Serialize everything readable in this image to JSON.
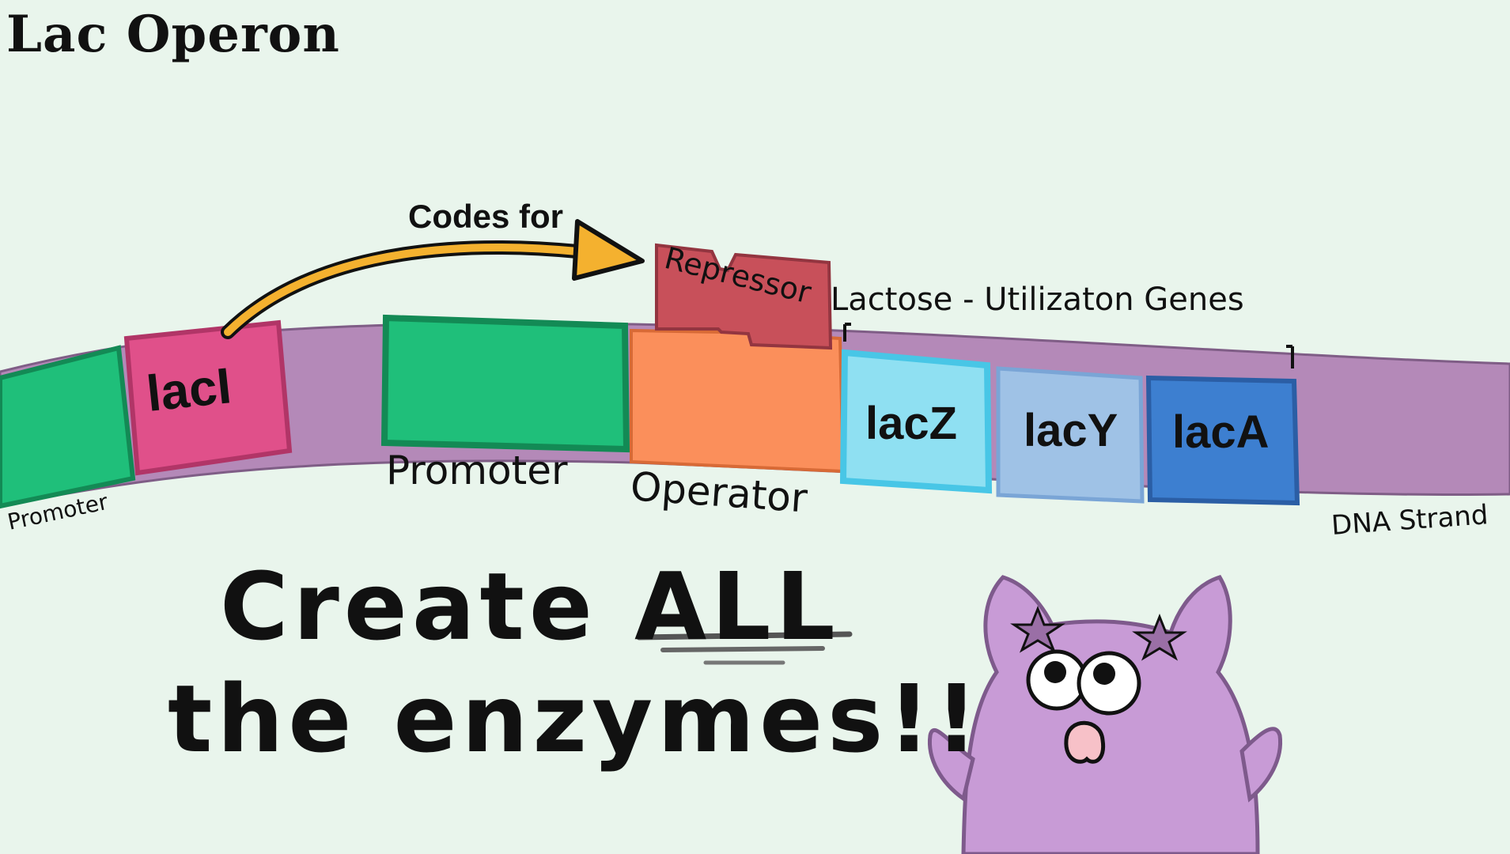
{
  "title": "Lac Operon",
  "arrow_label": "Codes for",
  "repressor_label": "Repressor",
  "gene_group_label": "Lactose - Utilizaton Genes",
  "segments": {
    "promoter_left": "Promoter",
    "lacI": "lacI",
    "promoter_main": "Promoter",
    "operator": "Operator",
    "lacZ": "lacZ",
    "lacY": "lacY",
    "lacA": "lacA",
    "dna_strand": "DNA Strand"
  },
  "headline": {
    "line1_prefix": "Create ",
    "line1_emphasis": "ALL",
    "line2": "the enzymes!!"
  },
  "colors": {
    "background": "#e9f5ec",
    "promoter": "#1fbf7a",
    "lacI": "#e0508a",
    "dna": "#b489b8",
    "operator": "#fb8f5b",
    "repressor": "#c8505a",
    "lacZ": "#8fe0f2",
    "lacY": "#9fc2e6",
    "lacA": "#3d7fd0",
    "arrow": "#f4b12f",
    "creature": "#c89bd6"
  },
  "mascot": {
    "name": "purple-creature"
  }
}
